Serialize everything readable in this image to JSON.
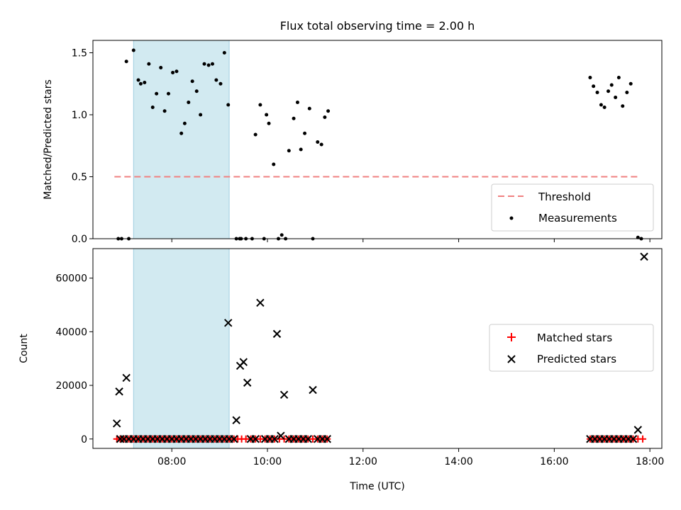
{
  "chart_data": [
    {
      "type": "scatter",
      "title": "Flux total observing time = 2.00 h",
      "xlabel": "",
      "ylabel": "Matched/Predicted stars",
      "xlim": [
        6.35,
        18.25
      ],
      "ylim": [
        0.0,
        1.6
      ],
      "yticks": [
        0.0,
        0.5,
        1.0,
        1.5
      ],
      "ytick_labels": [
        "0.0",
        "0.5",
        "1.0",
        "1.5"
      ],
      "xticks": [
        8,
        10,
        12,
        14,
        16,
        18
      ],
      "shaded_region": {
        "x": [
          7.2,
          9.2
        ],
        "color": "#add8e6"
      },
      "threshold": {
        "name": "Threshold",
        "y": 0.5,
        "x": [
          6.8,
          17.8
        ],
        "color": "#f08080"
      },
      "legend": {
        "position": "lower-right",
        "entries": [
          "Threshold",
          "Measurements"
        ]
      },
      "series": [
        {
          "name": "Measurements",
          "color": "#000000",
          "points": [
            [
              6.88,
              0.0
            ],
            [
              6.95,
              0.0
            ],
            [
              7.05,
              1.43
            ],
            [
              7.1,
              0.0
            ],
            [
              7.2,
              1.52
            ],
            [
              7.3,
              1.28
            ],
            [
              7.35,
              1.25
            ],
            [
              7.43,
              1.26
            ],
            [
              7.52,
              1.41
            ],
            [
              7.6,
              1.06
            ],
            [
              7.68,
              1.17
            ],
            [
              7.77,
              1.38
            ],
            [
              7.85,
              1.03
            ],
            [
              7.93,
              1.17
            ],
            [
              8.02,
              1.34
            ],
            [
              8.1,
              1.35
            ],
            [
              8.2,
              0.85
            ],
            [
              8.27,
              0.93
            ],
            [
              8.35,
              1.1
            ],
            [
              8.43,
              1.27
            ],
            [
              8.52,
              1.19
            ],
            [
              8.6,
              1.0
            ],
            [
              8.68,
              1.41
            ],
            [
              8.77,
              1.4
            ],
            [
              8.85,
              1.41
            ],
            [
              8.93,
              1.28
            ],
            [
              9.02,
              1.25
            ],
            [
              9.1,
              1.5
            ],
            [
              9.18,
              1.08
            ],
            [
              9.35,
              0.0
            ],
            [
              9.45,
              0.0
            ],
            [
              9.55,
              0.0
            ],
            [
              9.68,
              0.0
            ],
            [
              9.85,
              1.08
            ],
            [
              9.93,
              0.0
            ],
            [
              10.03,
              0.93
            ],
            [
              10.13,
              0.6
            ],
            [
              10.23,
              0.0
            ],
            [
              10.3,
              0.03
            ],
            [
              10.38,
              0.0
            ],
            [
              10.45,
              0.71
            ],
            [
              10.55,
              0.97
            ],
            [
              10.63,
              1.1
            ],
            [
              10.7,
              0.72
            ],
            [
              10.78,
              0.85
            ],
            [
              10.88,
              1.05
            ],
            [
              10.95,
              0.0
            ],
            [
              11.05,
              0.78
            ],
            [
              11.13,
              0.76
            ],
            [
              11.2,
              0.98
            ],
            [
              11.27,
              1.03
            ],
            [
              9.42,
              0.0
            ],
            [
              9.75,
              0.84
            ],
            [
              9.98,
              1.0
            ],
            [
              16.75,
              1.3
            ],
            [
              16.82,
              1.23
            ],
            [
              16.9,
              1.18
            ],
            [
              16.98,
              1.08
            ],
            [
              17.05,
              1.06
            ],
            [
              17.13,
              1.19
            ],
            [
              17.2,
              1.24
            ],
            [
              17.28,
              1.14
            ],
            [
              17.35,
              1.3
            ],
            [
              17.43,
              1.07
            ],
            [
              17.52,
              1.18
            ],
            [
              17.6,
              1.25
            ],
            [
              17.75,
              0.01
            ],
            [
              17.82,
              0.0
            ]
          ]
        }
      ]
    },
    {
      "type": "scatter",
      "title": "",
      "xlabel": "Time (UTC)",
      "ylabel": "Count",
      "xlim": [
        6.35,
        18.25
      ],
      "ylim": [
        -3500,
        71000
      ],
      "yticks": [
        0,
        20000,
        40000,
        60000
      ],
      "ytick_labels": [
        "0",
        "20000",
        "40000",
        "60000"
      ],
      "xticks": [
        8,
        10,
        12,
        14,
        16,
        18
      ],
      "xtick_labels": [
        "08:00",
        "10:00",
        "12:00",
        "14:00",
        "16:00",
        "18:00"
      ],
      "shaded_region": {
        "x": [
          7.2,
          9.2
        ],
        "color": "#add8e6"
      },
      "legend": {
        "position": "center-right",
        "entries": [
          "Matched stars",
          "Predicted stars"
        ]
      },
      "series": [
        {
          "name": "Matched stars",
          "marker": "plus",
          "color": "#ff0000",
          "points": [
            [
              6.85,
              0
            ],
            [
              6.92,
              0
            ],
            [
              7.0,
              0
            ],
            [
              7.1,
              0
            ],
            [
              7.2,
              0
            ],
            [
              7.3,
              0
            ],
            [
              7.4,
              0
            ],
            [
              7.5,
              0
            ],
            [
              7.6,
              0
            ],
            [
              7.7,
              0
            ],
            [
              7.8,
              0
            ],
            [
              7.9,
              0
            ],
            [
              8.0,
              0
            ],
            [
              8.1,
              0
            ],
            [
              8.2,
              0
            ],
            [
              8.3,
              0
            ],
            [
              8.4,
              0
            ],
            [
              8.5,
              0
            ],
            [
              8.6,
              0
            ],
            [
              8.7,
              0
            ],
            [
              8.8,
              0
            ],
            [
              8.9,
              0
            ],
            [
              9.0,
              0
            ],
            [
              9.1,
              0
            ],
            [
              9.2,
              0
            ],
            [
              9.3,
              0
            ],
            [
              9.38,
              0
            ],
            [
              9.46,
              0
            ],
            [
              9.55,
              0
            ],
            [
              9.65,
              0
            ],
            [
              9.75,
              0
            ],
            [
              9.85,
              0
            ],
            [
              9.95,
              0
            ],
            [
              10.05,
              0
            ],
            [
              10.15,
              0
            ],
            [
              10.25,
              0
            ],
            [
              10.35,
              0
            ],
            [
              10.45,
              0
            ],
            [
              10.55,
              0
            ],
            [
              10.65,
              0
            ],
            [
              10.75,
              0
            ],
            [
              10.85,
              0
            ],
            [
              10.95,
              0
            ],
            [
              11.05,
              0
            ],
            [
              11.15,
              0
            ],
            [
              11.25,
              0
            ],
            [
              16.75,
              0
            ],
            [
              16.85,
              0
            ],
            [
              16.95,
              0
            ],
            [
              17.05,
              0
            ],
            [
              17.15,
              0
            ],
            [
              17.25,
              0
            ],
            [
              17.35,
              0
            ],
            [
              17.45,
              0
            ],
            [
              17.55,
              0
            ],
            [
              17.65,
              0
            ],
            [
              17.75,
              0
            ],
            [
              17.85,
              0
            ]
          ]
        },
        {
          "name": "Predicted stars",
          "marker": "x",
          "color": "#000000",
          "points": [
            [
              6.85,
              5800
            ],
            [
              6.9,
              17700
            ],
            [
              7.05,
              22800
            ],
            [
              9.18,
              43300
            ],
            [
              9.35,
              7000
            ],
            [
              9.43,
              27300
            ],
            [
              9.5,
              28700
            ],
            [
              9.58,
              21000
            ],
            [
              9.85,
              50800
            ],
            [
              10.2,
              39200
            ],
            [
              10.28,
              1200
            ],
            [
              10.35,
              16500
            ],
            [
              10.95,
              18300
            ],
            [
              17.75,
              3400
            ],
            [
              17.88,
              68000
            ],
            [
              6.92,
              0
            ],
            [
              7.0,
              0
            ],
            [
              7.1,
              0
            ],
            [
              7.2,
              0
            ],
            [
              7.3,
              0
            ],
            [
              7.4,
              0
            ],
            [
              7.5,
              0
            ],
            [
              7.6,
              0
            ],
            [
              7.7,
              0
            ],
            [
              7.8,
              0
            ],
            [
              7.9,
              0
            ],
            [
              8.0,
              0
            ],
            [
              8.1,
              0
            ],
            [
              8.2,
              0
            ],
            [
              8.3,
              0
            ],
            [
              8.4,
              0
            ],
            [
              8.5,
              0
            ],
            [
              8.6,
              0
            ],
            [
              8.7,
              0
            ],
            [
              8.8,
              0
            ],
            [
              8.9,
              0
            ],
            [
              9.0,
              0
            ],
            [
              9.1,
              0
            ],
            [
              9.2,
              0
            ],
            [
              9.3,
              0
            ],
            [
              9.65,
              0
            ],
            [
              9.75,
              0
            ],
            [
              9.95,
              0
            ],
            [
              10.05,
              0
            ],
            [
              10.15,
              0
            ],
            [
              10.45,
              0
            ],
            [
              10.55,
              0
            ],
            [
              10.65,
              0
            ],
            [
              10.75,
              0
            ],
            [
              10.85,
              0
            ],
            [
              11.05,
              0
            ],
            [
              11.15,
              0
            ],
            [
              11.25,
              0
            ],
            [
              16.75,
              0
            ],
            [
              16.85,
              0
            ],
            [
              16.95,
              0
            ],
            [
              17.05,
              0
            ],
            [
              17.15,
              0
            ],
            [
              17.25,
              0
            ],
            [
              17.35,
              0
            ],
            [
              17.45,
              0
            ],
            [
              17.55,
              0
            ],
            [
              17.65,
              0
            ]
          ]
        }
      ]
    }
  ]
}
